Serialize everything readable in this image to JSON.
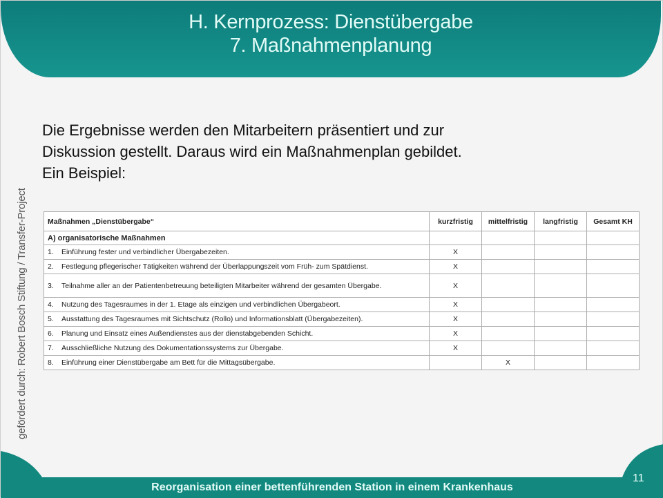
{
  "header": {
    "title": "H. Kernprozess: Dienstübergabe",
    "subtitle": "7. Maßnahmenplanung"
  },
  "sidebar_text": "gefördert durch: Robert Bosch Stiftung / Transfer-Project",
  "intro": {
    "line1": "Die Ergebnisse werden den Mitarbeitern präsentiert und zur",
    "line2": "Diskussion gestellt. Daraus wird ein Maßnahmenplan gebildet.",
    "line3": "Ein Beispiel:"
  },
  "table": {
    "headers": [
      "Maßnahmen „Dienstübergabe“",
      "kurzfristig",
      "mittelfristig",
      "langfristig",
      "Gesamt KH"
    ],
    "section": "A) organisatorische Maßnahmen",
    "rows": [
      {
        "num": "1.",
        "text": "Einführung fester und verbindlicher Übergabezeiten.",
        "marks": [
          "X",
          "",
          "",
          ""
        ]
      },
      {
        "num": "2.",
        "text": "Festlegung pflegerischer Tätigkeiten während der Überlappungszeit vom Früh- zum Spätdienst.",
        "marks": [
          "X",
          "",
          "",
          ""
        ]
      },
      {
        "num": "3.",
        "text": "Teilnahme aller an der Patientenbetreuung beteiligten Mitarbeiter während der gesamten Übergabe.",
        "marks": [
          "X",
          "",
          "",
          ""
        ]
      },
      {
        "num": "4.",
        "text": "Nutzung des Tagesraumes in der 1. Etage als einzigen und verbindlichen Übergabeort.",
        "marks": [
          "X",
          "",
          "",
          ""
        ]
      },
      {
        "num": "5.",
        "text": "Ausstattung des Tagesraumes mit Sichtschutz (Rollo) und Informationsblatt (Übergabezeiten).",
        "marks": [
          "X",
          "",
          "",
          ""
        ]
      },
      {
        "num": "6.",
        "text": "Planung und Einsatz eines Außendienstes aus der dienstabgebenden Schicht.",
        "marks": [
          "X",
          "",
          "",
          ""
        ]
      },
      {
        "num": "7.",
        "text": "Ausschließliche Nutzung des Dokumentationssystems zur Übergabe.",
        "marks": [
          "X",
          "",
          "",
          ""
        ]
      },
      {
        "num": "8.",
        "text": "Einführung einer Dienstübergabe am Bett für die Mittagsübergabe.",
        "marks": [
          "",
          "X",
          "",
          ""
        ]
      }
    ]
  },
  "footer": {
    "title": "Reorganisation einer bettenführenden Station in einem Krankenhaus",
    "page": "11"
  },
  "colors": {
    "teal": "#12887f",
    "text_light": "#e2fbf6"
  }
}
